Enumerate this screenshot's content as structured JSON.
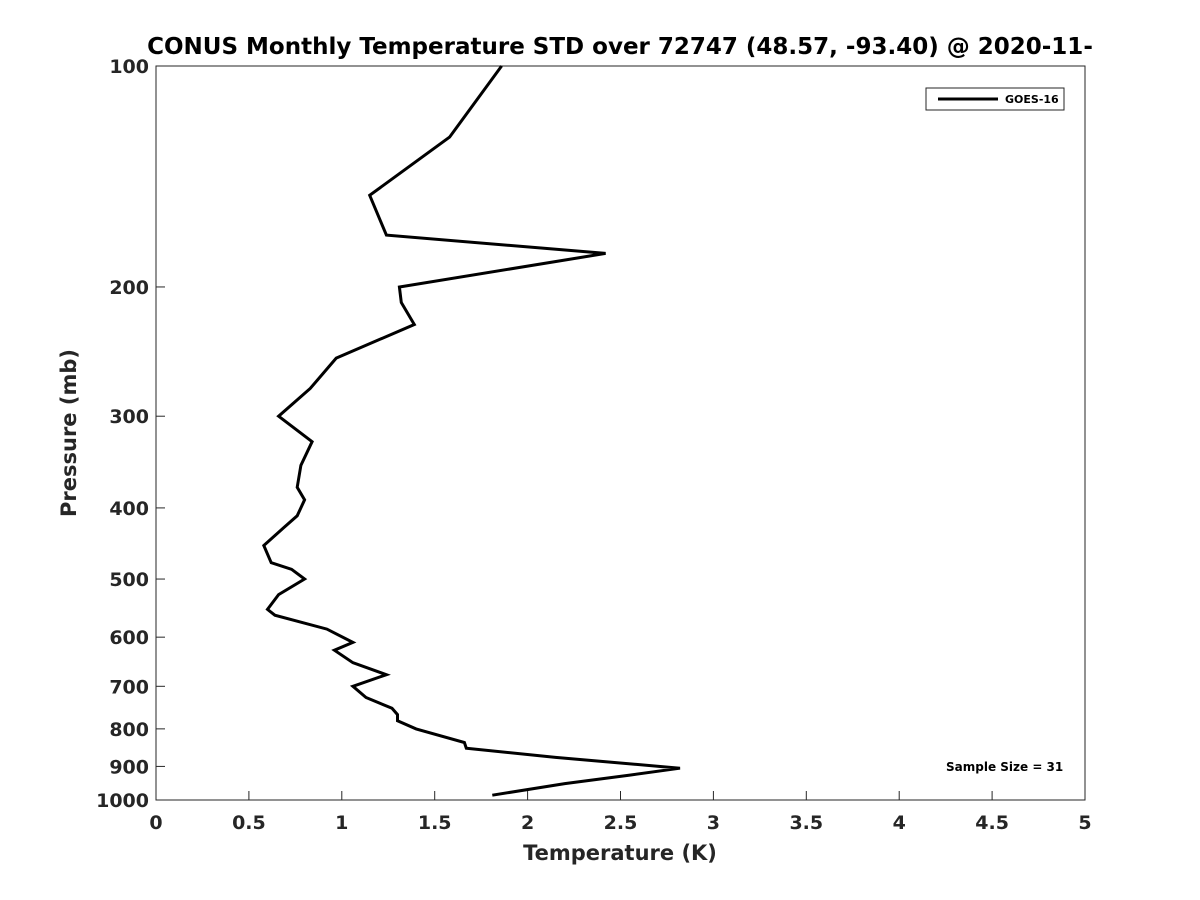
{
  "chart_data": {
    "type": "line",
    "title": "CONUS Monthly Temperature STD over 72747 (48.57, -93.40) @ 2020-11-",
    "xlabel": "Temperature (K)",
    "ylabel": "Pressure (mb)",
    "xlim": [
      0,
      5
    ],
    "ylim": [
      100,
      1000
    ],
    "y_scale": "log",
    "y_reversed": true,
    "grid": false,
    "legend_position": "top-right",
    "x_ticks": [
      0,
      0.5,
      1,
      1.5,
      2,
      2.5,
      3,
      3.5,
      4,
      4.5,
      5
    ],
    "x_tick_labels": [
      "0",
      "0.5",
      "1",
      "1.5",
      "2",
      "2.5",
      "3",
      "3.5",
      "4",
      "4.5",
      "5"
    ],
    "y_ticks": [
      100,
      200,
      300,
      400,
      500,
      600,
      700,
      800,
      900,
      1000
    ],
    "y_tick_labels": [
      "100",
      "200",
      "300",
      "400",
      "500",
      "600",
      "700",
      "800",
      "900",
      "1000"
    ],
    "series": [
      {
        "name": "GOES-16",
        "color": "#000000",
        "points": [
          [
            1.86,
            100
          ],
          [
            1.58,
            125
          ],
          [
            1.15,
            150
          ],
          [
            1.24,
            170
          ],
          [
            2.42,
            180
          ],
          [
            1.31,
            200
          ],
          [
            1.32,
            210
          ],
          [
            1.39,
            225
          ],
          [
            0.97,
            250
          ],
          [
            0.83,
            275
          ],
          [
            0.66,
            300
          ],
          [
            0.84,
            325
          ],
          [
            0.78,
            350
          ],
          [
            0.76,
            375
          ],
          [
            0.8,
            390
          ],
          [
            0.76,
            410
          ],
          [
            0.69,
            425
          ],
          [
            0.58,
            450
          ],
          [
            0.62,
            475
          ],
          [
            0.73,
            485
          ],
          [
            0.8,
            500
          ],
          [
            0.66,
            525
          ],
          [
            0.6,
            550
          ],
          [
            0.64,
            560
          ],
          [
            0.92,
            585
          ],
          [
            1.06,
            610
          ],
          [
            0.96,
            625
          ],
          [
            1.06,
            650
          ],
          [
            1.24,
            675
          ],
          [
            1.06,
            700
          ],
          [
            1.13,
            725
          ],
          [
            1.27,
            750
          ],
          [
            1.3,
            765
          ],
          [
            1.3,
            780
          ],
          [
            1.4,
            800
          ],
          [
            1.66,
            835
          ],
          [
            1.67,
            850
          ],
          [
            2.15,
            875
          ],
          [
            2.82,
            905
          ],
          [
            2.55,
            925
          ],
          [
            2.2,
            950
          ],
          [
            1.81,
            985
          ]
        ]
      }
    ],
    "annotations": [
      "Sample Size = 31"
    ]
  }
}
